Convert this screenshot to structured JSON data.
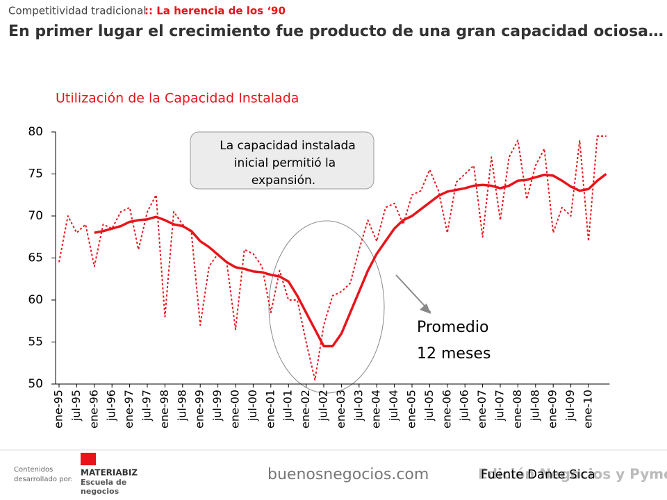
{
  "header": {
    "section": "Competitividad tradicional",
    "subsection": ":: La herencia de los ‘90",
    "title": "En primer lugar el crecimiento fue producto de una gran capacidad ociosa…"
  },
  "chart_data": {
    "type": "line",
    "title": "Utilización de la Capacidad Instalada",
    "categories": [
      "ene-95",
      null,
      "jul-95",
      null,
      "ene-96",
      null,
      "jul-96",
      null,
      "ene-97",
      null,
      "jul-97",
      null,
      "ene-98",
      null,
      "jul-98",
      null,
      "ene-99",
      null,
      "jul-99",
      null,
      "ene-00",
      null,
      "jul-00",
      null,
      "ene-01",
      null,
      "jul-01",
      null,
      "ene-02",
      null,
      "jul-02",
      null,
      "ene-03",
      null,
      "jul-03",
      null,
      "ene-04",
      null,
      "jul-04",
      null,
      "ene-05",
      null,
      "jul-05",
      null,
      "ene-06",
      null,
      "jul-06",
      null,
      "ene-07",
      null,
      "jul-07",
      null,
      "ene-08",
      null,
      "jul-08",
      null,
      "ene-09",
      null,
      "jul-09",
      null,
      "ene-10",
      null,
      null
    ],
    "series": [
      {
        "color": "#e8141b",
        "style": "dotted",
        "values": [
          64.5,
          70,
          68,
          69,
          64,
          69,
          68.5,
          70.5,
          71,
          66,
          70.5,
          72.5,
          58,
          70.5,
          69,
          68,
          57,
          64,
          65.5,
          64.5,
          56.5,
          66,
          65.5,
          64,
          58.5,
          63.5,
          60,
          60,
          55,
          50.5,
          57,
          60.5,
          61,
          62,
          66,
          69.5,
          67,
          71,
          71.5,
          69,
          72.5,
          73,
          75.5,
          73,
          68,
          74,
          75,
          76,
          67.5,
          77,
          69.5,
          77,
          79,
          72,
          76,
          78,
          68,
          71,
          70,
          79,
          67,
          79.5,
          79.5
        ]
      },
      {
        "color": "#e8141b",
        "style": "solid",
        "values": [
          null,
          null,
          null,
          null,
          68,
          68.2,
          68.5,
          68.8,
          69.3,
          69.5,
          69.6,
          69.9,
          69.5,
          69,
          68.8,
          68.2,
          67,
          66.3,
          65.4,
          64.5,
          63.9,
          63.7,
          63.4,
          63.3,
          63,
          62.8,
          62.2,
          60.5,
          58.5,
          56.5,
          54.5,
          54.5,
          56,
          58.5,
          61,
          63.5,
          65.5,
          67,
          68.5,
          69.5,
          70,
          70.8,
          71.6,
          72.4,
          72.9,
          73.1,
          73.3,
          73.6,
          73.7,
          73.6,
          73.3,
          73.6,
          74.2,
          74.3,
          74.6,
          74.9,
          74.8,
          74.2,
          73.5,
          73,
          73.2,
          74.2,
          75
        ]
      }
    ],
    "ylim": [
      50,
      80
    ],
    "yticks": [
      50,
      55,
      60,
      65,
      70,
      75,
      80
    ],
    "annotations": {
      "callout": [
        "La capacidad instalada",
        "inicial permitió la",
        "expansión."
      ],
      "average": [
        "Promedio",
        "12 meses"
      ]
    }
  },
  "footer": {
    "credit": "Contenidos",
    "credit2": "desarrollado por:",
    "brand": "MATERIABIZ",
    "brand2": "Escuela de",
    "brand3": "negocios",
    "site": "buenosnegocios.com",
    "logo": "Edición Negocios y Pymes",
    "source": "Fuente Dante Sica"
  }
}
